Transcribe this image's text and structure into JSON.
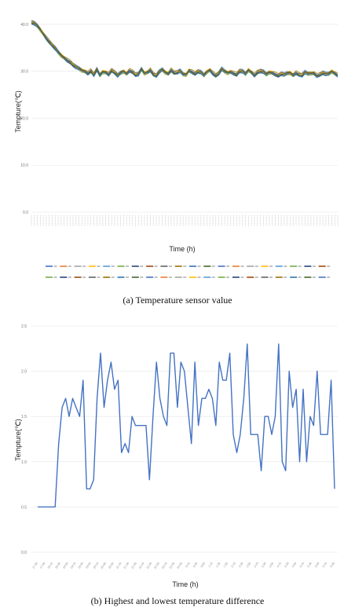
{
  "chart_data": [
    {
      "type": "line",
      "ylabel": "Tempture(℃)",
      "xlabel": "Time (h)",
      "caption": "(a) Temperature sensor value",
      "yticks": [
        "0.0",
        "10.0",
        "20.0",
        "30.0",
        "40.0"
      ],
      "ylim": [
        0,
        41
      ],
      "grid": true,
      "legend_position": "bottom",
      "series_colors": [
        "#4472c4",
        "#ed7d31",
        "#a5a5a5",
        "#ffc000",
        "#5b9bd5",
        "#70ad47",
        "#264478",
        "#9e480e",
        "#636363",
        "#997300",
        "#2e75b6",
        "#43682b"
      ],
      "base_profile": [
        40.5,
        40.2,
        39.7,
        38.9,
        38.0,
        37.1,
        36.3,
        35.6,
        34.9,
        34.1,
        33.4,
        32.9,
        32.4,
        32.0,
        31.4,
        30.9,
        30.6,
        30.2,
        30.0,
        29.6,
        30.1,
        29.3,
        30.4,
        29.2,
        29.9,
        29.8,
        29.4,
        30.2,
        29.8,
        29.1,
        29.7,
        30.0,
        29.5,
        30.2,
        29.9,
        29.3,
        29.4,
        30.5,
        29.6,
        29.8,
        30.3,
        29.4,
        29.1,
        29.9,
        30.4,
        29.8,
        29.5,
        30.3,
        29.7,
        29.8,
        30.1,
        29.4,
        29.3,
        30.2,
        29.9,
        29.5,
        30.0,
        29.8,
        29.2,
        29.9,
        30.3,
        29.6,
        29.1,
        29.6,
        30.5,
        30.0,
        29.7,
        29.9,
        29.6,
        29.3,
        30.1,
        30.0,
        29.5,
        30.3,
        29.8,
        29.2,
        29.8,
        30.1,
        29.9,
        29.4,
        29.8,
        29.7,
        29.4,
        29.1,
        29.5,
        29.3,
        29.6,
        29.7,
        29.2,
        29.7,
        29.3,
        29.2,
        29.8,
        29.5,
        29.6,
        29.6,
        29.1,
        29.3,
        29.7,
        29.4,
        29.5,
        30.0,
        29.6,
        29.2
      ]
    },
    {
      "type": "line",
      "ylabel": "Tempture(℃)",
      "xlabel": "Time (h)",
      "caption": "(b) Highest and lowest temperature difference",
      "ylim": [
        0,
        2.5
      ],
      "yticks": [
        "0.0",
        "0.5",
        "1.0",
        "1.5",
        "2.0",
        "2.5"
      ],
      "grid": true,
      "series": [
        {
          "color": "#4472c4",
          "values": [
            0.5,
            0.5,
            0.5,
            0.5,
            0.5,
            0.5,
            1.2,
            1.6,
            1.7,
            1.5,
            1.7,
            1.6,
            1.5,
            1.9,
            0.7,
            0.7,
            0.8,
            1.7,
            2.2,
            1.6,
            1.9,
            2.1,
            1.8,
            1.9,
            1.1,
            1.2,
            1.1,
            1.5,
            1.4,
            1.4,
            1.4,
            1.4,
            0.8,
            1.5,
            2.1,
            1.7,
            1.5,
            1.4,
            2.2,
            2.2,
            1.6,
            2.1,
            2.0,
            1.6,
            1.2,
            2.1,
            1.4,
            1.7,
            1.7,
            1.8,
            1.7,
            1.4,
            2.1,
            1.9,
            1.9,
            2.2,
            1.3,
            1.1,
            1.3,
            1.7,
            2.3,
            1.3,
            1.3,
            1.3,
            0.9,
            1.5,
            1.5,
            1.3,
            1.5,
            2.3,
            1.0,
            0.9,
            2.0,
            1.6,
            1.8,
            1.0,
            1.8,
            1.0,
            1.5,
            1.4,
            2.0,
            1.3,
            1.3,
            1.3,
            1.9,
            0.7
          ]
        }
      ],
      "xticks": [
        "17:30",
        "17:50",
        "18:10",
        "18:30",
        "18:50",
        "19:10",
        "19:30",
        "19:50",
        "20:10",
        "20:30",
        "20:50",
        "21:10",
        "21:30",
        "21:50",
        "22:10",
        "22:30",
        "22:50",
        "23:10",
        "23:30",
        "23:50",
        "0:10",
        "0:30",
        "0:50",
        "1:10",
        "1:30",
        "1:50",
        "2:10",
        "2:30",
        "2:50",
        "3:10",
        "3:30",
        "3:50",
        "4:10",
        "4:30",
        "4:50",
        "5:10",
        "5:30",
        "5:50",
        "6:10",
        "6:30"
      ]
    }
  ]
}
